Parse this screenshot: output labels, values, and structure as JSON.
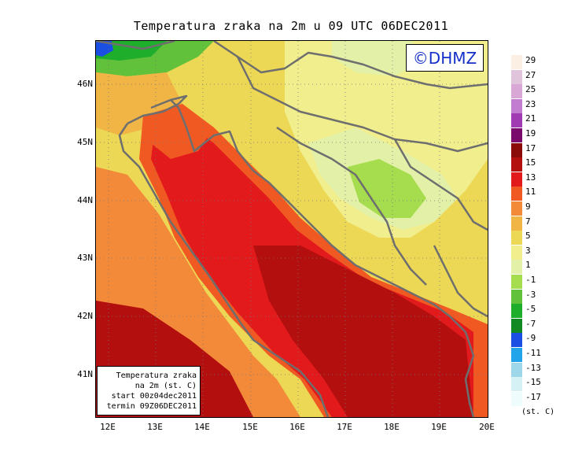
{
  "title": "Temperatura zraka na 2m u 09 UTC 06DEC2011",
  "logo": "©DHMZ",
  "info_box": [
    "Temperatura zraka",
    "na 2m (st. C)",
    "start 00z04dec2011",
    "termin 09Z06DEC2011"
  ],
  "lat_labels": [
    "46N",
    "45N",
    "44N",
    "43N",
    "42N",
    "41N"
  ],
  "lon_labels": [
    "12E",
    "13E",
    "14E",
    "15E",
    "16E",
    "17E",
    "18E",
    "19E",
    "20E"
  ],
  "legend": {
    "unit": "(st. C)",
    "labels": [
      "29",
      "27",
      "25",
      "23",
      "21",
      "19",
      "17",
      "15",
      "13",
      "11",
      "9",
      "7",
      "5",
      "3",
      "1",
      "-1",
      "-3",
      "-5",
      "-7",
      "-9",
      "-11",
      "-13",
      "-15",
      "-17"
    ],
    "colors": [
      "#fbeee2",
      "#e0c4dc",
      "#d9a7d6",
      "#c27cd0",
      "#a13bb3",
      "#7a0a6b",
      "#8b0a0a",
      "#b30f0f",
      "#e31a1c",
      "#f05a22",
      "#f38a3a",
      "#f0b545",
      "#ecd855",
      "#f1ee8e",
      "#e2f0a8",
      "#a6dd4e",
      "#62c13a",
      "#1fae2c",
      "#128a24",
      "#1b4fe3",
      "#22a4ea",
      "#9fd7ea",
      "#d6f1f4",
      "#eefcfc"
    ]
  },
  "map_colors": {
    "coast_line": "#6e6e6e",
    "sea_warm": "#e31a1c",
    "sea_hot": "#b30f0f",
    "coast_band": "#f05a22",
    "land_mild": "#f0b545",
    "land_cool": "#ecd855",
    "land_cold": "#e2f0a8",
    "land_freeze": "#a6dd4e",
    "alps_green": "#1fae2c",
    "alps_blue": "#1b4fe3"
  }
}
